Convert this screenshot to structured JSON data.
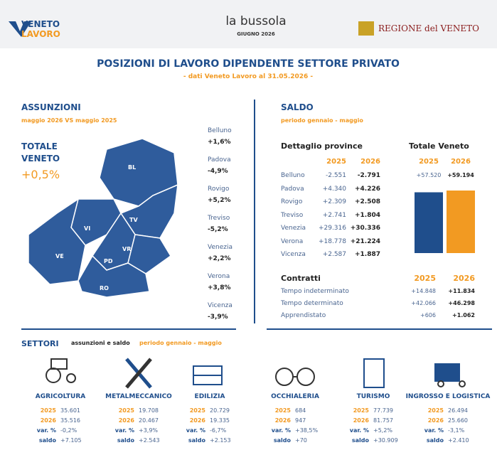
{
  "header": {
    "logo_left": [
      "VENETO",
      "LAVORO"
    ],
    "center_title": "la bussola",
    "center_subtitle": "GIUGNO 2026",
    "logo_right": "REGIONE del VENETO"
  },
  "title": "POSIZIONI DI LAVORO DIPENDENTE SETTORE PRIVATO",
  "subtitle": "- dati Veneto Lavoro al 31.05.2026 -",
  "assunzioni": {
    "heading": "ASSUNZIONI",
    "subheading": "maggio 2026 VS maggio 2025",
    "total_label": [
      "TOTALE",
      "VENETO"
    ],
    "total_value": "+0,5%",
    "map_labels": [
      "BL",
      "TV",
      "VI",
      "VE",
      "PD",
      "VR",
      "RO"
    ],
    "provinces": [
      [
        "Belluno",
        "+1,6%"
      ],
      [
        "Padova",
        "-4,9%"
      ],
      [
        "Rovigo",
        "+5,2%"
      ],
      [
        "Treviso",
        "-5,2%"
      ],
      [
        "Venezia",
        "+2,2%"
      ],
      [
        "Verona",
        "+3,8%"
      ],
      [
        "Vicenza",
        "-3,9%"
      ]
    ]
  },
  "saldo": {
    "heading": "SALDO",
    "subheading": "periodo gennaio - maggio",
    "dettaglio": {
      "title": "Dettaglio province",
      "columns": [
        "2025",
        "2026"
      ],
      "rows": [
        [
          "Belluno",
          "-2.551",
          "-2.791"
        ],
        [
          "Padova",
          "+4.340",
          "+4.226"
        ],
        [
          "Rovigo",
          "+2.309",
          "+2.508"
        ],
        [
          "Treviso",
          "+2.741",
          "+1.804"
        ],
        [
          "Venezia",
          "+29.316",
          "+30.336"
        ],
        [
          "Verona",
          "+18.778",
          "+21.224"
        ],
        [
          "Vicenza",
          "+2.587",
          "+1.887"
        ]
      ]
    },
    "totale": {
      "title": "Totale Veneto",
      "years": [
        "2025",
        "2026"
      ],
      "values": [
        57520,
        59194
      ],
      "value_labels": [
        "+57.520",
        "+59.194"
      ],
      "colors": [
        "#1f4e8c",
        "#f29a22"
      ]
    },
    "contratti": {
      "title": "Contratti",
      "columns": [
        "2025",
        "2026"
      ],
      "rows": [
        [
          "Tempo indeterminato",
          "+14.848",
          "+11.834"
        ],
        [
          "Tempo determinato",
          "+42.066",
          "+46.298"
        ],
        [
          "Apprendistato",
          "+606",
          "+1.062"
        ]
      ]
    }
  },
  "settori": {
    "heading": "SETTORI",
    "subheading": "assunzioni e saldo",
    "period": "periodo gennaio - maggio",
    "sectors": [
      {
        "name": "AGRICOLTURA",
        "rows": [
          [
            "2025",
            "35.601"
          ],
          [
            "2026",
            "35.516"
          ],
          [
            "var. %",
            "-0,2%"
          ],
          [
            "saldo",
            "+7.105"
          ]
        ]
      },
      {
        "name": "METALMECCANICO",
        "rows": [
          [
            "2025",
            "19.708"
          ],
          [
            "2026",
            "20.467"
          ],
          [
            "var. %",
            "+3,9%"
          ],
          [
            "saldo",
            "+2.543"
          ]
        ]
      },
      {
        "name": "EDILIZIA",
        "rows": [
          [
            "2025",
            "20.729"
          ],
          [
            "2026",
            "19.335"
          ],
          [
            "var. %",
            "-6,7%"
          ],
          [
            "saldo",
            "+2.153"
          ]
        ]
      },
      {
        "name": "OCCHIALERIA",
        "rows": [
          [
            "2025",
            "684"
          ],
          [
            "2026",
            "947"
          ],
          [
            "var. %",
            "+38,5%"
          ],
          [
            "saldo",
            "+70"
          ]
        ]
      },
      {
        "name": "TURISMO",
        "rows": [
          [
            "2025",
            "77.739"
          ],
          [
            "2026",
            "81.757"
          ],
          [
            "var. %",
            "+5,2%"
          ],
          [
            "saldo",
            "+30.909"
          ]
        ]
      },
      {
        "name": "INGROSSO E LOGISTICA",
        "rows": [
          [
            "2025",
            "26.494"
          ],
          [
            "2026",
            "25.660"
          ],
          [
            "var. %",
            "-3,1%"
          ],
          [
            "saldo",
            "+2.410"
          ]
        ]
      }
    ]
  }
}
